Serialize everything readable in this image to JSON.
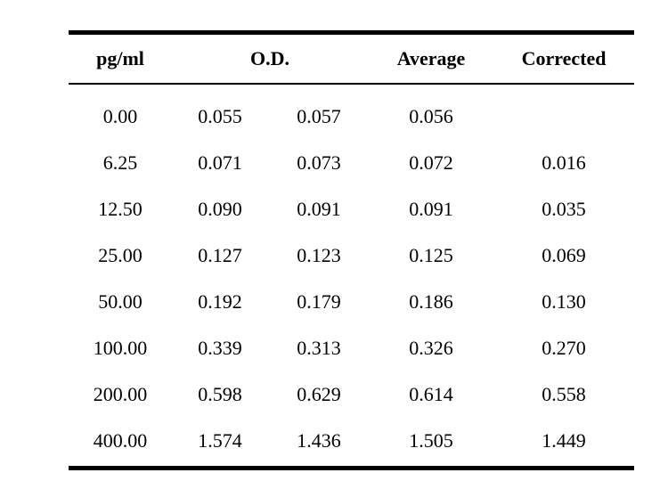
{
  "table": {
    "headers": {
      "pg_ml": "pg/ml",
      "od": "O.D.",
      "average": "Average",
      "corrected": "Corrected"
    },
    "rows": [
      {
        "pg_ml": "0.00",
        "od1": "0.055",
        "od2": "0.057",
        "average": "0.056",
        "corrected": ""
      },
      {
        "pg_ml": "6.25",
        "od1": "0.071",
        "od2": "0.073",
        "average": "0.072",
        "corrected": "0.016"
      },
      {
        "pg_ml": "12.50",
        "od1": "0.090",
        "od2": "0.091",
        "average": "0.091",
        "corrected": "0.035"
      },
      {
        "pg_ml": "25.00",
        "od1": "0.127",
        "od2": "0.123",
        "average": "0.125",
        "corrected": "0.069"
      },
      {
        "pg_ml": "50.00",
        "od1": "0.192",
        "od2": "0.179",
        "average": "0.186",
        "corrected": "0.130"
      },
      {
        "pg_ml": "100.00",
        "od1": "0.339",
        "od2": "0.313",
        "average": "0.326",
        "corrected": "0.270"
      },
      {
        "pg_ml": "200.00",
        "od1": "0.598",
        "od2": "0.629",
        "average": "0.614",
        "corrected": "0.558"
      },
      {
        "pg_ml": "400.00",
        "od1": "1.574",
        "od2": "1.436",
        "average": "1.505",
        "corrected": "1.449"
      }
    ]
  }
}
